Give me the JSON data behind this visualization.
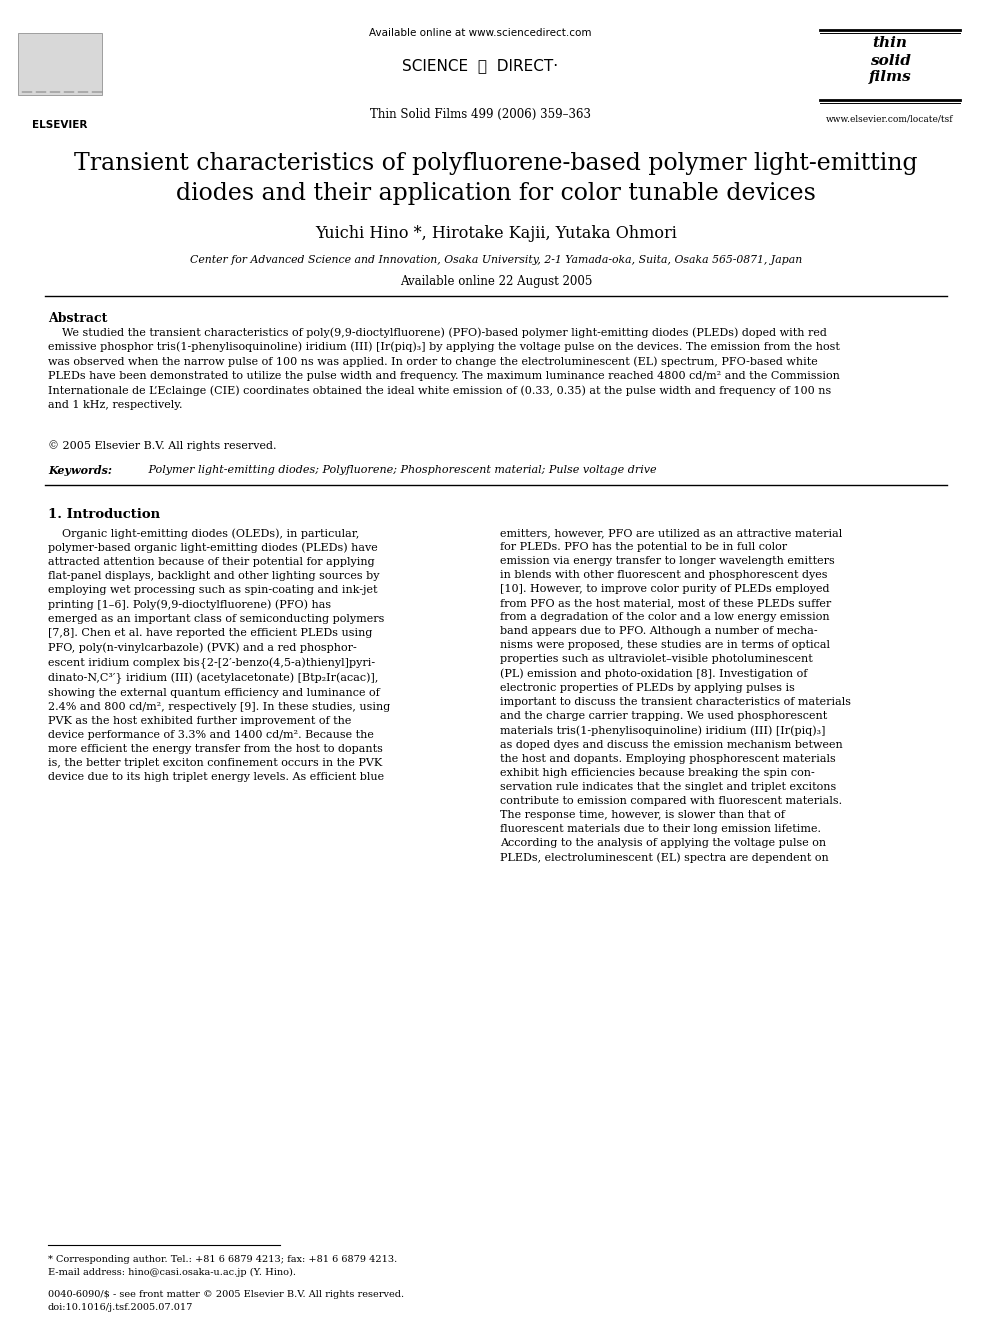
{
  "bg_color": "#ffffff",
  "text_color": "#000000",
  "header_available_online": "Available online at www.sciencedirect.com",
  "journal_line": "Thin Solid Films 499 (2006) 359–363",
  "journal_website": "www.elsevier.com/locate/tsf",
  "title_line1": "Transient characteristics of polyfluorene-based polymer light-emitting",
  "title_line2": "diodes and their application for color tunable devices",
  "authors": "Yuichi Hino *, Hirotake Kajii, Yutaka Ohmori",
  "affiliation": "Center for Advanced Science and Innovation, Osaka University, 2-1 Yamada-oka, Suita, Osaka 565-0871, Japan",
  "available_online": "Available online 22 August 2005",
  "abstract_header": "Abstract",
  "abstract_text": "We studied the transient characteristics of poly(9,9-dioctylfluorene) (PFO)-based polymer light-emitting diodes (PLEDs) doped with red emissive phosphor tris(1-phenylisoquinoline) iridium (III) [Ir(piq)₃] by applying the voltage pulse on the devices. The emission from the host was observed when the narrow pulse of 100 ns was applied. In order to change the electroluminescent (EL) spectrum, PFO-based white PLEDs have been demonstrated to utilize the pulse width and frequency. The maximum luminance reached 4800 cd/m² and the Commission Internationale de L’Eclainage (CIE) coordinates obtained the ideal white emission of (0.33, 0.35) at the pulse width and frequency of 100 ns and 1 kHz, respectively.",
  "copyright": "© 2005 Elsevier B.V. All rights reserved.",
  "keywords_header": "Keywords:",
  "keywords_text": " Polymer light-emitting diodes; Polyfluorene; Phosphorescent material; Pulse voltage drive",
  "section1_header": "1. Introduction",
  "intro_col1_para1": "Organic light-emitting diodes (OLEDs), in particular, polymer-based organic light-emitting diodes (PLEDs) have attracted attention because of their potential for applying flat-panel displays, backlight and other lighting sources by employing wet processing such as spin-coating and ink-jet printing [1–6]. Poly(9,9-dioctylfluorene) (PFO) has emerged as an important class of semiconducting polymers [7,8]. Chen et al. have reported the efficient PLEDs using PFO, poly(n-vinylcarbazole) (PVK) and a red phosphorescent iridium complex bis{2-[2’-benzo(4,5-a)thienyl]pyridinato-N,C³’} iridium (III) (acetylacetonate) [Btp₂Ir(acac)], showing the external quantum efficiency and luminance of 2.4% and 800 cd/m², respectively [9]. In these studies, using PVK as the host exhibited further improvement of the device performance of 3.3% and 1400 cd/m². Because the more efficient the energy transfer from the host to dopants is, the better triplet exciton confinement occurs in the PVK device due to its high triplet energy levels. As efficient blue",
  "intro_col2_para1": "emitters, however, PFO are utilized as an attractive material for PLEDs. PFO has the potential to be in full color emission via energy transfer to longer wavelength emitters in blends with other fluorescent and phosphorescent dyes [10]. However, to improve color purity of PLEDs employed from PFO as the host material, most of these PLEDs suffer from a degradation of the color and a low energy emission band appears due to PFO. Although a number of mechanisms were proposed, these studies are in terms of optical properties such as ultraviolet–visible photoluminescent (PL) emission and photo-oxidation [8]. Investigation of electronic properties of PLEDs by applying pulses is important to discuss the transient characteristics of materials and the charge carrier trapping. We used phosphorescent materials tris(1-phenylisoquinoline) iridium (III) [Ir(piq)₃] as doped dyes and discuss the emission mechanism between the host and dopants. Employing phosphorescent materials exhibit high efficiencies because breaking the spin conservation rule indicates that the singlet and triplet excitons contribute to emission compared with fluorescent materials. The response time, however, is slower than that of fluorescent materials due to their long emission lifetime. According to the analysis of applying the voltage pulse on PLEDs, electroluminescent (EL) spectra are dependent on",
  "footnote_star": "* Corresponding author. Tel.: +81 6 6879 4213; fax: +81 6 6879 4213.",
  "footnote_email": "E-mail address: hino@casi.osaka-u.ac.jp (Y. Hino).",
  "footer_issn": "0040-6090/$ - see front matter © 2005 Elsevier B.V. All rights reserved.",
  "footer_doi": "doi:10.1016/j.tsf.2005.07.017"
}
